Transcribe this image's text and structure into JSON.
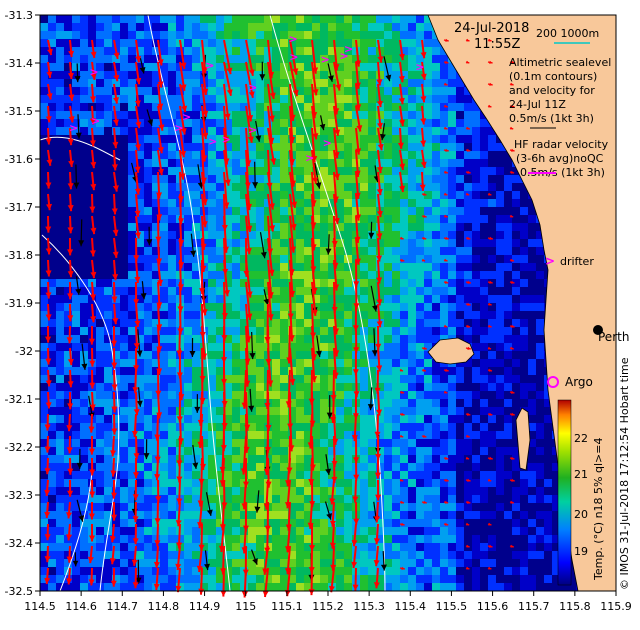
{
  "map": {
    "title_date": "24-Jul-2018",
    "title_time": "11:55Z",
    "scale_label": "200  1000m",
    "altimetry_lines": [
      "Altimetric sealevel",
      "(0.1m contours)",
      "and velocity for",
      "24-Jul 11Z",
      "0.5m/s (1kt 3h)"
    ],
    "hf_radar_lines": [
      "HF radar velocity",
      "(3-6h avg)noQC",
      "0.5m/s (1kt 3h)"
    ],
    "drifter_label": "drifter",
    "city_label": "Perth",
    "argo_label": "Argo",
    "credit": "© IMOS 31-Jul-2018 17:12:54 Hobart time",
    "colorbar_label": "Temp. (°C) n18 5% ql>=4",
    "colorbar_ticks": [
      "22",
      "21",
      "20",
      "19"
    ],
    "x_ticks": [
      "114.5",
      "114.6",
      "114.7",
      "114.8",
      "114.9",
      "115",
      "115.1",
      "115.2",
      "115.3",
      "115.4",
      "115.5",
      "115.6",
      "115.7",
      "115.8",
      "115.9"
    ],
    "y_ticks": [
      "-31.3",
      "-31.4",
      "-31.5",
      "-31.6",
      "-31.7",
      "-31.8",
      "-31.9",
      "-32",
      "-32.1",
      "-32.2",
      "-32.3",
      "-32.4",
      "-32.5"
    ],
    "colors": {
      "land": "#f8c89a",
      "altimetry_arrow": "#000000",
      "hf_arrow": "#ff0000",
      "drifter": "#ff00ff",
      "argo": "#ff00ff",
      "contour": "#ffffff",
      "scale_bar": "#00c8c8"
    }
  }
}
